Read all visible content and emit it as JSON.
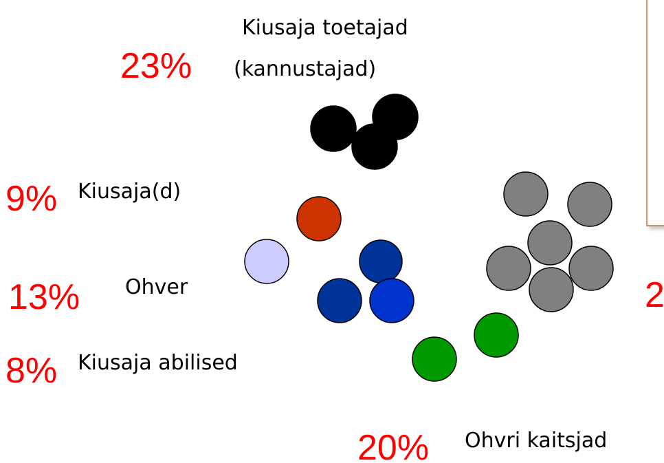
{
  "groups": [
    {
      "percent": "23%",
      "label": [
        "Kiusaja toetajad",
        "(kannustajad)"
      ]
    },
    {
      "percent": "9%",
      "label": [
        "Kiusaja(d)"
      ]
    },
    {
      "percent": "13%",
      "label": [
        "Ohver"
      ]
    },
    {
      "percent": "8%",
      "label": [
        "Kiusaja abilised"
      ]
    },
    {
      "percent": "20%",
      "label": [
        "Ohvri kaitsjad"
      ]
    },
    {
      "percent": "2"
    }
  ]
}
